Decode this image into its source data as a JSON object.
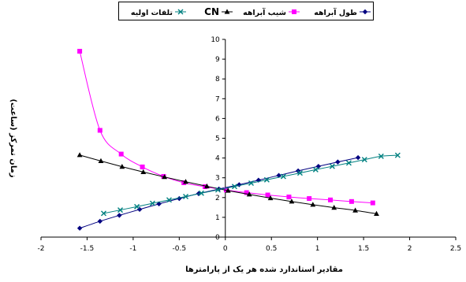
{
  "chart_data": {
    "type": "line",
    "xlabel": "مقادیر استاندارد شده هر یک از پارامترها",
    "ylabel": "زمان تمرکز (ساعت)",
    "xlim": [
      -2,
      2.5
    ],
    "ylim": [
      0,
      10
    ],
    "x_ticks": [
      "-2",
      "-1.5",
      "-1",
      "-0.5",
      "0",
      "0.5",
      "1",
      "1.5",
      "2",
      "2.5"
    ],
    "y_ticks": [
      "0",
      "1",
      "2",
      "3",
      "4",
      "5",
      "6",
      "7",
      "8",
      "9",
      "10"
    ],
    "grid": false,
    "legend_position": "top",
    "series": [
      {
        "name": "طول آبراهه",
        "color": "#000080",
        "marker": "diamond",
        "points": [
          [
            -1.58,
            0.45
          ],
          [
            -1.36,
            0.8
          ],
          [
            -1.15,
            1.1
          ],
          [
            -0.93,
            1.4
          ],
          [
            -0.72,
            1.68
          ],
          [
            -0.5,
            1.95
          ],
          [
            -0.29,
            2.2
          ],
          [
            -0.07,
            2.43
          ],
          [
            0.15,
            2.65
          ],
          [
            0.36,
            2.88
          ],
          [
            0.58,
            3.12
          ],
          [
            0.79,
            3.35
          ],
          [
            1.01,
            3.58
          ],
          [
            1.22,
            3.8
          ],
          [
            1.44,
            4.02
          ]
        ]
      },
      {
        "name": "شیب آبراهه",
        "color": "#ff00ff",
        "marker": "square",
        "points": [
          [
            -1.58,
            9.4
          ],
          [
            -1.36,
            5.4
          ],
          [
            -1.13,
            4.2
          ],
          [
            -0.9,
            3.55
          ],
          [
            -0.67,
            3.07
          ],
          [
            -0.45,
            2.75
          ],
          [
            -0.22,
            2.55
          ],
          [
            0.01,
            2.38
          ],
          [
            0.23,
            2.25
          ],
          [
            0.46,
            2.13
          ],
          [
            0.69,
            2.03
          ],
          [
            0.91,
            1.95
          ],
          [
            1.14,
            1.88
          ],
          [
            1.37,
            1.8
          ],
          [
            1.6,
            1.73
          ]
        ]
      },
      {
        "name": "CN",
        "color": "#000000",
        "marker": "triangle",
        "points": [
          [
            -1.58,
            4.15
          ],
          [
            -1.35,
            3.85
          ],
          [
            -1.12,
            3.56
          ],
          [
            -0.89,
            3.29
          ],
          [
            -0.66,
            3.04
          ],
          [
            -0.43,
            2.8
          ],
          [
            -0.2,
            2.57
          ],
          [
            0.03,
            2.35
          ],
          [
            0.26,
            2.16
          ],
          [
            0.49,
            1.97
          ],
          [
            0.72,
            1.8
          ],
          [
            0.95,
            1.64
          ],
          [
            1.18,
            1.49
          ],
          [
            1.41,
            1.35
          ],
          [
            1.64,
            1.18
          ]
        ]
      },
      {
        "name": "تلفات اولیه",
        "color": "#008080",
        "marker": "x",
        "points": [
          [
            -1.32,
            1.2
          ],
          [
            -1.14,
            1.37
          ],
          [
            -0.96,
            1.54
          ],
          [
            -0.79,
            1.71
          ],
          [
            -0.61,
            1.88
          ],
          [
            -0.43,
            2.05
          ],
          [
            -0.26,
            2.22
          ],
          [
            -0.08,
            2.39
          ],
          [
            0.1,
            2.56
          ],
          [
            0.28,
            2.73
          ],
          [
            0.45,
            2.9
          ],
          [
            0.63,
            3.07
          ],
          [
            0.81,
            3.24
          ],
          [
            0.98,
            3.41
          ],
          [
            1.16,
            3.58
          ],
          [
            1.34,
            3.75
          ],
          [
            1.51,
            3.92
          ],
          [
            1.69,
            4.09
          ],
          [
            1.87,
            4.14
          ]
        ]
      }
    ]
  }
}
